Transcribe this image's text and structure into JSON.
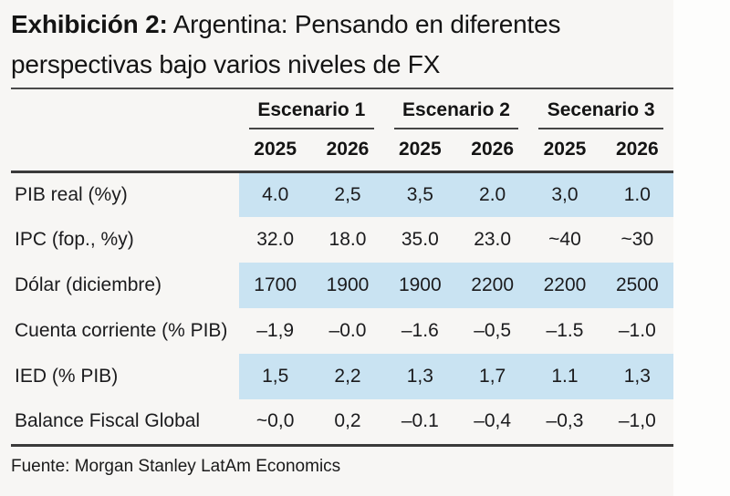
{
  "title": {
    "label": "Exhibición 2:",
    "text": "Argentina: Pensando en diferentes perspectivas bajo varios niveles de FX"
  },
  "table": {
    "groups": [
      {
        "label": "Escenario 1"
      },
      {
        "label": "Escenario 2"
      },
      {
        "label": "Secenario 3"
      }
    ],
    "years": [
      "2025",
      "2026",
      "2025",
      "2026",
      "2025",
      "2026"
    ],
    "rows": [
      {
        "label": "PIB real (%y)",
        "highlight": true,
        "values": [
          "4.0",
          "2,5",
          "3,5",
          "2.0",
          "3,0",
          "1.0"
        ]
      },
      {
        "label": "IPC (fop., %y)",
        "highlight": false,
        "values": [
          "32.0",
          "18.0",
          "35.0",
          "23.0",
          "~40",
          "~30"
        ]
      },
      {
        "label": "Dólar (diciembre)",
        "highlight": true,
        "values": [
          "1700",
          "1900",
          "1900",
          "2200",
          "2200",
          "2500"
        ]
      },
      {
        "label": "Cuenta corriente (% PIB)",
        "highlight": false,
        "values": [
          "–1,9",
          "–0.0",
          "–1.6",
          "–0,5",
          "–1.5",
          "–1.0"
        ]
      },
      {
        "label": "IED (% PIB)",
        "highlight": true,
        "values": [
          "1,5",
          "2,2",
          "1,3",
          "1,7",
          "1.1",
          "1,3"
        ]
      },
      {
        "label": "Balance Fiscal Global",
        "highlight": false,
        "values": [
          "~0,0",
          "0,2",
          "–0.1",
          "–0,4",
          "–0,3",
          "–1,0"
        ]
      }
    ]
  },
  "footer": {
    "source": "Fuente: Morgan Stanley LatAm Economics"
  },
  "colors": {
    "highlight": "#c9e3f2",
    "rule": "#3a3a3a",
    "background": "#f7f6f4",
    "text": "#1b1b1d"
  }
}
